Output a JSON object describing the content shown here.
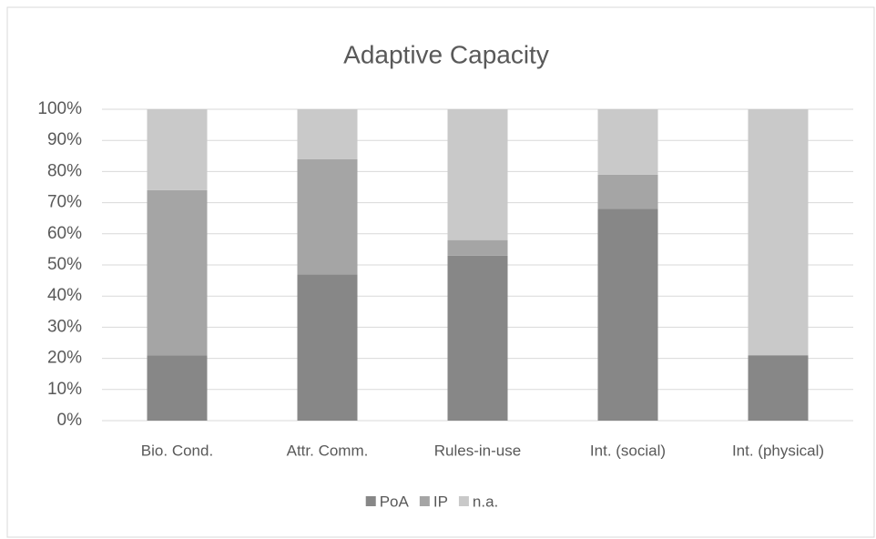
{
  "chart_data": {
    "type": "stacked_bar",
    "title": "Adaptive Capacity",
    "categories": [
      "Bio. Cond.",
      "Attr. Comm.",
      "Rules-in-use",
      "Int. (social)",
      "Int. (physical)"
    ],
    "series": [
      {
        "name": "PoA",
        "color": "#878787",
        "values": [
          21,
          47,
          53,
          68,
          21
        ]
      },
      {
        "name": "IP",
        "color": "#a5a5a5",
        "values": [
          53,
          37,
          5,
          11,
          0
        ]
      },
      {
        "name": "n.a.",
        "color": "#c9c9c9",
        "values": [
          26,
          16,
          42,
          21,
          79
        ]
      }
    ],
    "ylim": [
      0,
      100
    ],
    "yticks": [
      {
        "value": 0,
        "label": "0%"
      },
      {
        "value": 10,
        "label": "10%"
      },
      {
        "value": 20,
        "label": "20%"
      },
      {
        "value": 30,
        "label": "30%"
      },
      {
        "value": 40,
        "label": "40%"
      },
      {
        "value": 50,
        "label": "50%"
      },
      {
        "value": 60,
        "label": "60%"
      },
      {
        "value": 70,
        "label": "70%"
      },
      {
        "value": 80,
        "label": "80%"
      },
      {
        "value": 90,
        "label": "90%"
      },
      {
        "value": 100,
        "label": "100%"
      }
    ],
    "grid": true,
    "legend": "bottom"
  }
}
